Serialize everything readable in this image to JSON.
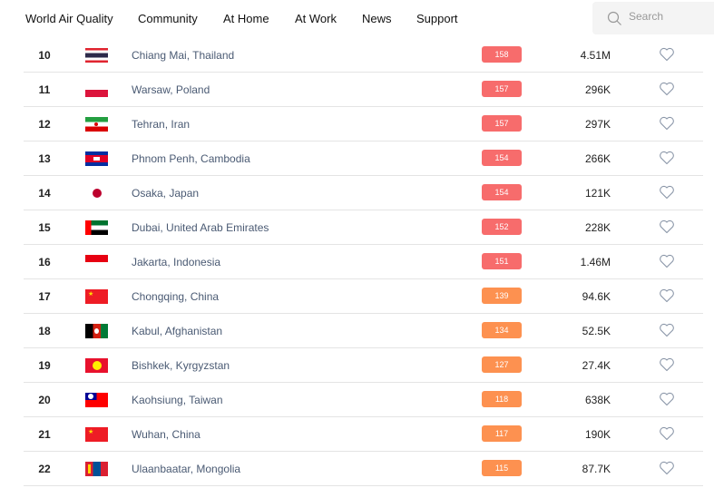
{
  "nav": {
    "items": [
      "World Air Quality",
      "Community",
      "At Home",
      "At Work",
      "News",
      "Support"
    ],
    "search_placeholder": "Search"
  },
  "colors": {
    "unhealthy": "#f76c6c",
    "sensitive": "#fd9150"
  },
  "rows": [
    {
      "rank": "10",
      "flag": "thailand",
      "city": "Chiang Mai, Thailand",
      "aqi": "158",
      "level": "unhealthy",
      "population": "4.51M"
    },
    {
      "rank": "11",
      "flag": "poland",
      "city": "Warsaw, Poland",
      "aqi": "157",
      "level": "unhealthy",
      "population": "296K"
    },
    {
      "rank": "12",
      "flag": "iran",
      "city": "Tehran, Iran",
      "aqi": "157",
      "level": "unhealthy",
      "population": "297K"
    },
    {
      "rank": "13",
      "flag": "cambodia",
      "city": "Phnom Penh, Cambodia",
      "aqi": "154",
      "level": "unhealthy",
      "population": "266K"
    },
    {
      "rank": "14",
      "flag": "japan",
      "city": "Osaka, Japan",
      "aqi": "154",
      "level": "unhealthy",
      "population": "121K"
    },
    {
      "rank": "15",
      "flag": "uae",
      "city": "Dubai, United Arab Emirates",
      "aqi": "152",
      "level": "unhealthy",
      "population": "228K"
    },
    {
      "rank": "16",
      "flag": "indonesia",
      "city": "Jakarta, Indonesia",
      "aqi": "151",
      "level": "unhealthy",
      "population": "1.46M"
    },
    {
      "rank": "17",
      "flag": "china",
      "city": "Chongqing, China",
      "aqi": "139",
      "level": "sensitive",
      "population": "94.6K"
    },
    {
      "rank": "18",
      "flag": "afghanistan",
      "city": "Kabul, Afghanistan",
      "aqi": "134",
      "level": "sensitive",
      "population": "52.5K"
    },
    {
      "rank": "19",
      "flag": "kyrgyzstan",
      "city": "Bishkek, Kyrgyzstan",
      "aqi": "127",
      "level": "sensitive",
      "population": "27.4K"
    },
    {
      "rank": "20",
      "flag": "taiwan",
      "city": "Kaohsiung, Taiwan",
      "aqi": "118",
      "level": "sensitive",
      "population": "638K"
    },
    {
      "rank": "21",
      "flag": "china",
      "city": "Wuhan, China",
      "aqi": "117",
      "level": "sensitive",
      "population": "190K"
    },
    {
      "rank": "22",
      "flag": "mongolia",
      "city": "Ulaanbaatar, Mongolia",
      "aqi": "115",
      "level": "sensitive",
      "population": "87.7K"
    }
  ]
}
